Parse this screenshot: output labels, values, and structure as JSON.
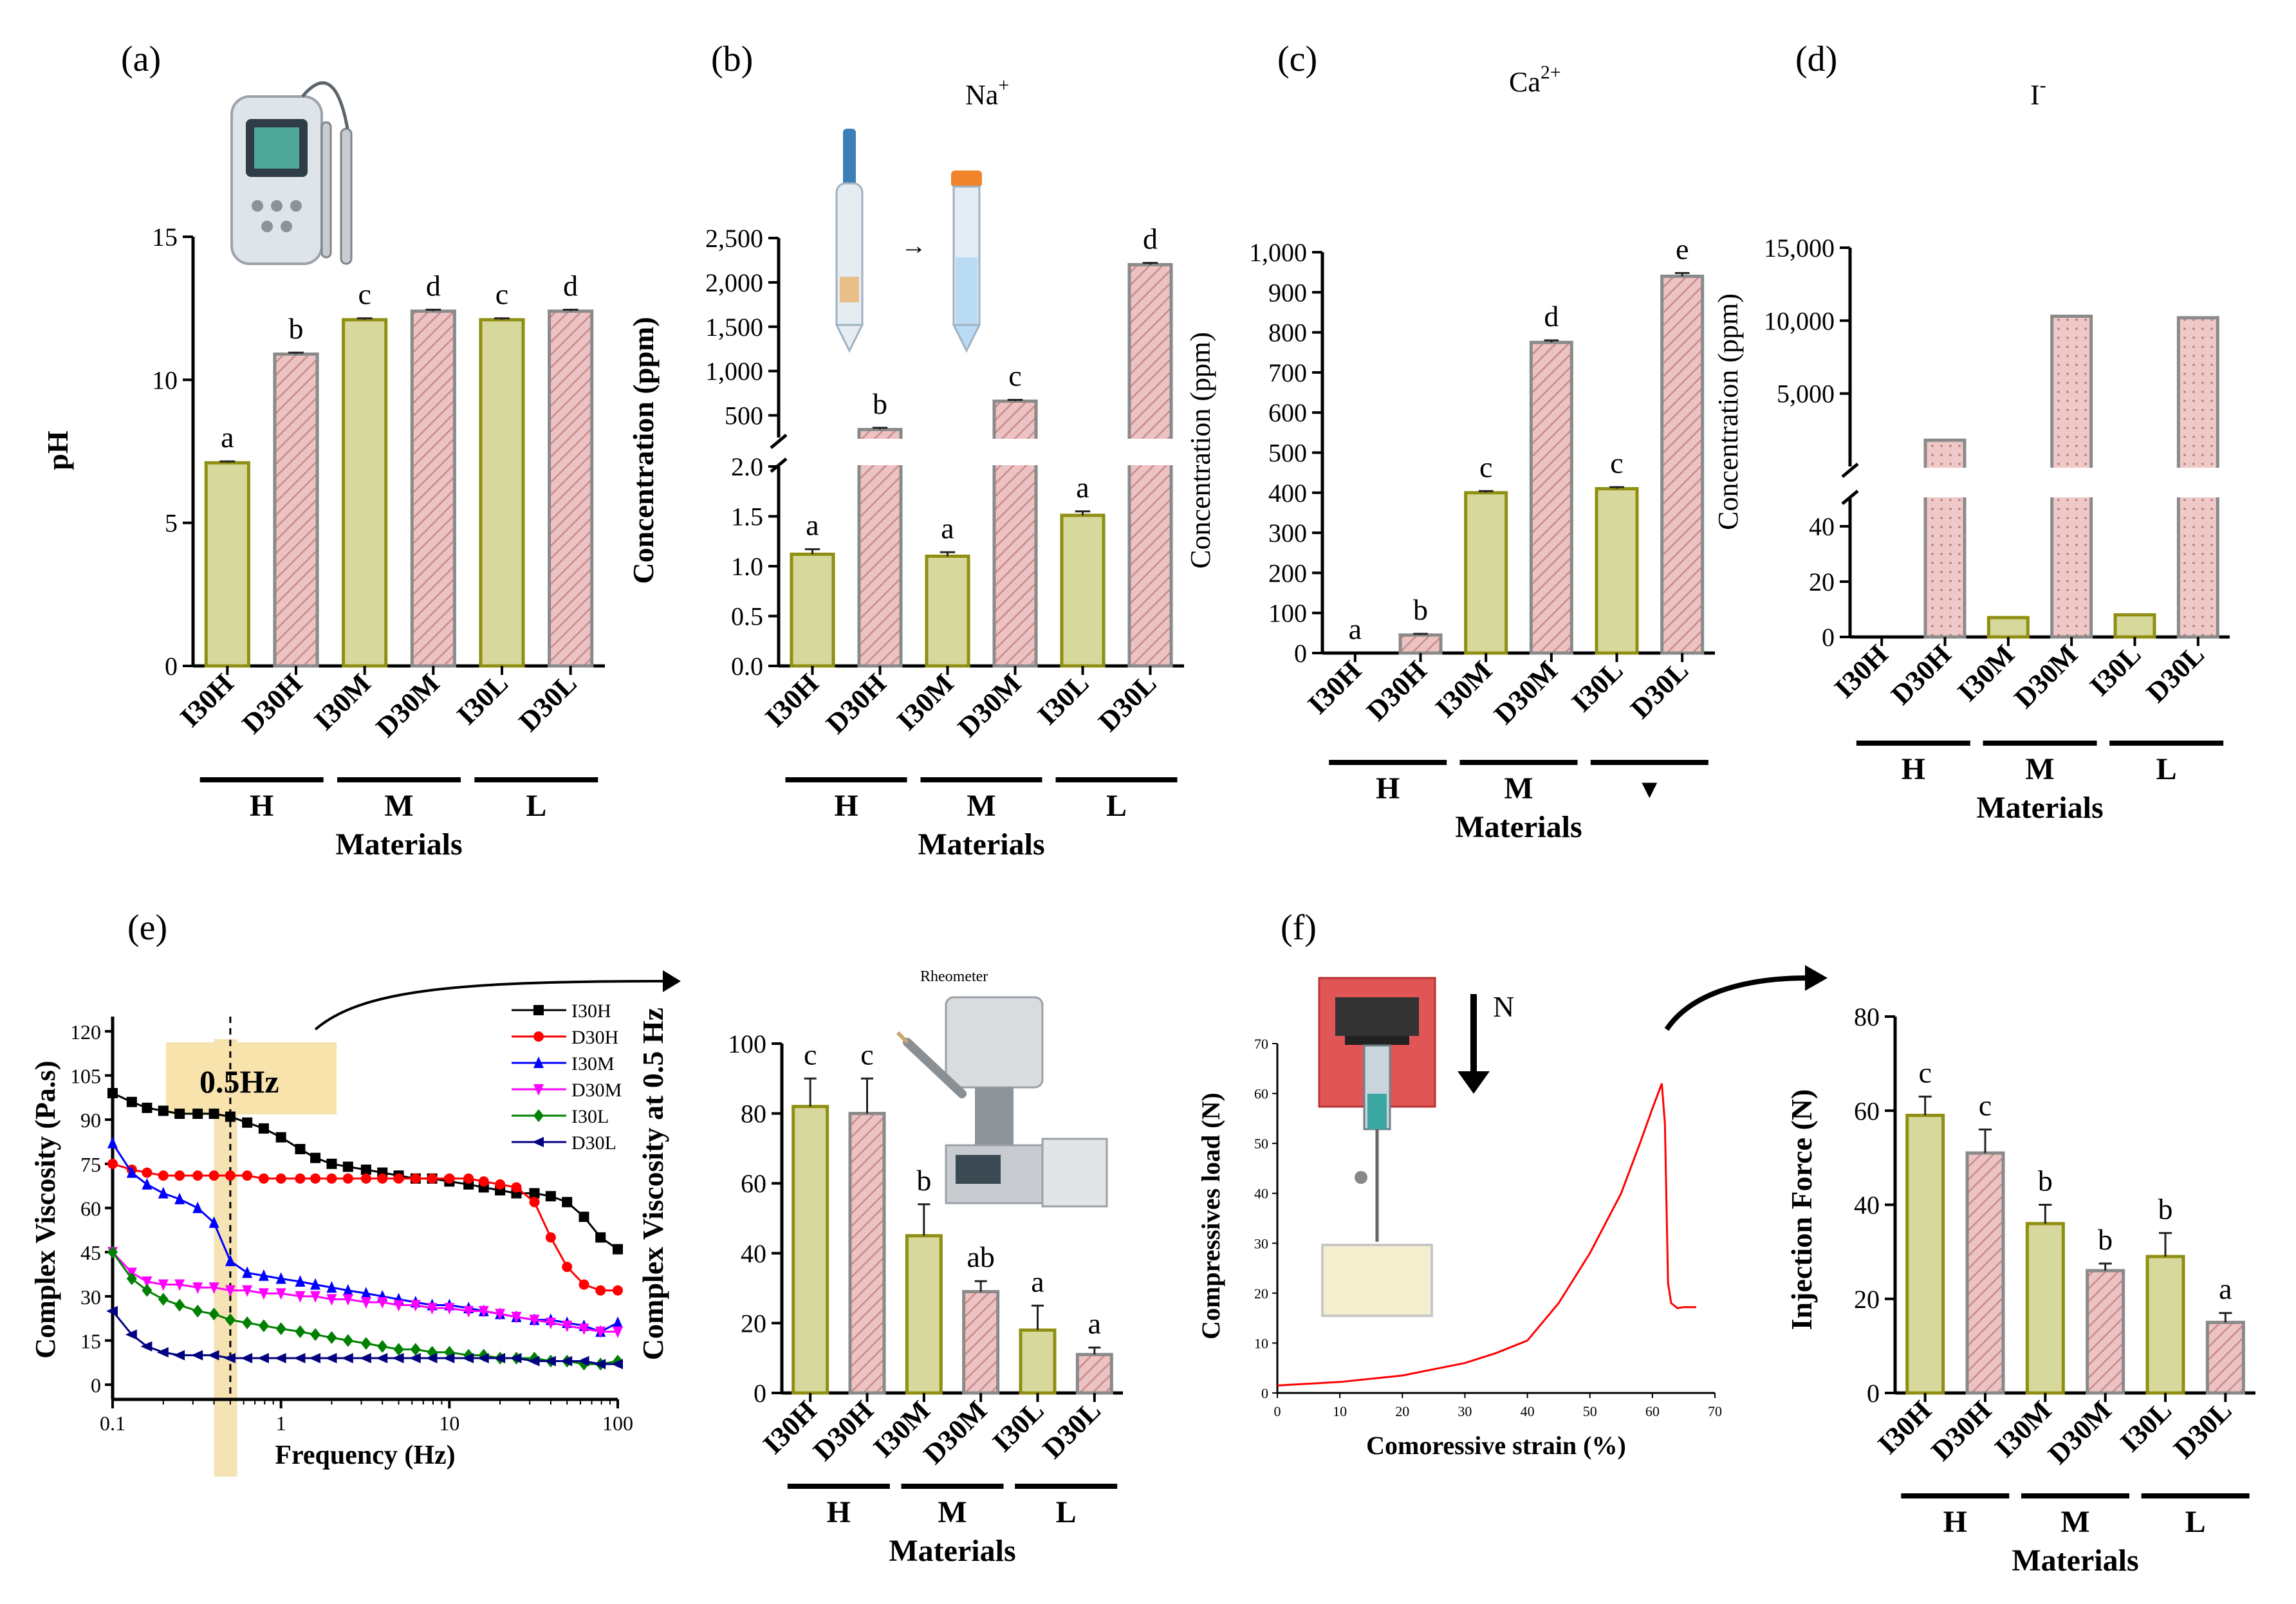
{
  "panel_labels": [
    "(a)",
    "(b)",
    "(c)",
    "(d)",
    "(e)",
    "(f)"
  ],
  "chart_data": [
    {
      "panel": "(a)",
      "type": "bar",
      "title": "",
      "ylabel": "pH",
      "xlabel": "Materials",
      "categories": [
        "I30H",
        "D30H",
        "I30M",
        "D30M",
        "I30L",
        "D30L"
      ],
      "groups": [
        "H",
        "M",
        "L"
      ],
      "values": [
        7.1,
        10.9,
        12.1,
        12.4,
        12.1,
        12.4
      ],
      "errors": [
        0.05,
        0.05,
        0.05,
        0.05,
        0.05,
        0.05
      ],
      "significance": [
        "a",
        "b",
        "c",
        "d",
        "c",
        "d"
      ],
      "ylim": [
        0,
        15
      ],
      "yticks": [
        "0",
        "5",
        "10",
        "15"
      ]
    },
    {
      "panel": "(b)",
      "type": "bar",
      "title": "Na",
      "title_sup": "+",
      "ylabel": "Concentration (ppm)",
      "xlabel": "Materials",
      "categories": [
        "I30H",
        "D30H",
        "I30M",
        "D30M",
        "I30L",
        "D30L"
      ],
      "groups": [
        "H",
        "M",
        "L"
      ],
      "values": [
        1.12,
        340,
        1.1,
        660,
        1.51,
        2200
      ],
      "errors": [
        0.05,
        20,
        0.04,
        15,
        0.04,
        20
      ],
      "significance": [
        "a",
        "b",
        "a",
        "c",
        "a",
        "d"
      ],
      "ylim_lower": [
        0,
        2.0
      ],
      "ylim_upper": [
        250,
        2500
      ],
      "yticks_lower": [
        "0.0",
        "0.5",
        "1.0",
        "1.5",
        "2.0"
      ],
      "yticks_upper": [
        "500",
        "1,000",
        "1,500",
        "2,000",
        "2,500"
      ]
    },
    {
      "panel": "(c)",
      "type": "bar",
      "title": "Ca",
      "title_sup": "2+",
      "ylabel": "Concentration (ppm)",
      "xlabel": "Materials",
      "categories": [
        "I30H",
        "D30H",
        "I30M",
        "D30M",
        "I30L",
        "D30L"
      ],
      "groups": [
        "H",
        "M",
        "▾"
      ],
      "values": [
        0,
        45,
        400,
        775,
        410,
        940
      ],
      "errors": [
        0,
        3,
        4,
        5,
        4,
        8
      ],
      "significance": [
        "a",
        "b",
        "c",
        "d",
        "c",
        "e"
      ],
      "ylim": [
        0,
        1000
      ],
      "yticks": [
        "0",
        "100",
        "200",
        "300",
        "400",
        "500",
        "600",
        "700",
        "800",
        "900",
        "1,000"
      ]
    },
    {
      "panel": "(d)",
      "type": "bar",
      "title": "I",
      "title_sup": "-",
      "ylabel": "Concentration (ppm)",
      "xlabel": "Materials",
      "categories": [
        "I30H",
        "D30H",
        "I30M",
        "D30M",
        "I30L",
        "D30L"
      ],
      "groups": [
        "H",
        "M",
        "L"
      ],
      "values": [
        0,
        1800,
        7,
        10300,
        8,
        10200
      ],
      "errors": [
        0,
        0,
        0,
        0,
        0,
        0
      ],
      "ylim_lower": [
        0,
        50
      ],
      "ylim_upper": [
        0,
        15000
      ],
      "yticks_lower": [
        "0",
        "20",
        "40"
      ],
      "yticks_upper": [
        "5,000",
        "10,000",
        "15,000"
      ]
    },
    {
      "panel": "(e)",
      "type": "line",
      "title": "",
      "xlabel": "Frequency (Hz)",
      "ylabel": "Complex Viscosity (Pa.s)",
      "xscale": "log",
      "xlim": [
        0.1,
        100
      ],
      "ylim": [
        -5,
        125
      ],
      "xticks": [
        "0.1",
        "1",
        "10",
        "100"
      ],
      "yticks": [
        "0",
        "15",
        "30",
        "45",
        "60",
        "75",
        "90",
        "105",
        "120"
      ],
      "annotation": "0.5Hz",
      "legend_position": "top-right",
      "x": [
        0.1,
        0.13,
        0.16,
        0.2,
        0.25,
        0.32,
        0.4,
        0.5,
        0.63,
        0.79,
        1,
        1.3,
        1.6,
        2,
        2.5,
        3.2,
        4,
        5,
        6.3,
        7.9,
        10,
        13,
        16,
        20,
        25,
        32,
        40,
        50,
        63,
        79,
        100
      ],
      "series": [
        {
          "name": "I30H",
          "color": "#000000",
          "marker": "square",
          "values": [
            99,
            96,
            94,
            93,
            92,
            92,
            92,
            91,
            89,
            87,
            84,
            80,
            77,
            75,
            74,
            73,
            72,
            71,
            70,
            70,
            69,
            68,
            67,
            66,
            65,
            65,
            64,
            62,
            57,
            50,
            46
          ]
        },
        {
          "name": "D30H",
          "color": "#ff0000",
          "marker": "circle",
          "values": [
            75,
            73,
            72,
            71,
            71,
            71,
            71,
            71,
            71,
            70,
            70,
            70,
            70,
            70,
            70,
            70,
            70,
            70,
            70,
            70,
            70,
            70,
            69,
            68,
            67,
            62,
            50,
            40,
            34,
            32,
            32
          ]
        },
        {
          "name": "I30M",
          "color": "#0000ff",
          "marker": "triangle-up",
          "values": [
            82,
            72,
            68,
            65,
            63,
            60,
            55,
            42,
            38,
            37,
            36,
            35,
            34,
            33,
            32,
            31,
            30,
            29,
            28,
            27,
            27,
            26,
            25,
            24,
            23,
            22,
            22,
            21,
            20,
            18,
            21
          ]
        },
        {
          "name": "D30M",
          "color": "#ff00ff",
          "marker": "triangle-down",
          "values": [
            45,
            38,
            35,
            34,
            34,
            33,
            33,
            32,
            32,
            31,
            31,
            30,
            30,
            29,
            29,
            28,
            28,
            27,
            27,
            26,
            26,
            25,
            25,
            24,
            23,
            22,
            21,
            20,
            19,
            18,
            18
          ]
        },
        {
          "name": "I30L",
          "color": "#008000",
          "marker": "diamond",
          "values": [
            45,
            36,
            32,
            29,
            27,
            25,
            24,
            22,
            21,
            20,
            19,
            18,
            17,
            16,
            15,
            14,
            13,
            12,
            12,
            11,
            11,
            10,
            10,
            9,
            9,
            9,
            8,
            8,
            7,
            7,
            8
          ]
        },
        {
          "name": "D30L",
          "color": "#000080",
          "marker": "triangle-left",
          "values": [
            25,
            17,
            13,
            11,
            10,
            10,
            10,
            9,
            9,
            9,
            9,
            9,
            9,
            9,
            9,
            9,
            9,
            9,
            9,
            9,
            9,
            9,
            9,
            9,
            9,
            8,
            8,
            8,
            8,
            7,
            7
          ]
        }
      ]
    },
    {
      "panel": "(e)-inset",
      "type": "bar",
      "ylabel": "Complex Viscosity at 0.5 Hz",
      "xlabel": "Materials",
      "image_label": "Rheometer",
      "categories": [
        "I30H",
        "D30H",
        "I30M",
        "D30M",
        "I30L",
        "D30L"
      ],
      "groups": [
        "H",
        "M",
        "L"
      ],
      "values": [
        82,
        80,
        45,
        29,
        18,
        11
      ],
      "errors": [
        8,
        10,
        9,
        3,
        7,
        2
      ],
      "significance": [
        "c",
        "c",
        "b",
        "ab",
        "a",
        "a"
      ],
      "ylim": [
        0,
        100
      ],
      "yticks": [
        "0",
        "20",
        "40",
        "60",
        "80",
        "100"
      ]
    },
    {
      "panel": "(f)",
      "type": "line",
      "xlabel": "Comoressive strain (%)",
      "ylabel": "Compressives load (N)",
      "annotation": "N",
      "xlim": [
        0,
        70
      ],
      "ylim": [
        0,
        70
      ],
      "xticks": [
        "0",
        "10",
        "20",
        "30",
        "40",
        "50",
        "60",
        "70"
      ],
      "yticks": [
        "0",
        "10",
        "20",
        "30",
        "40",
        "50",
        "60",
        "70"
      ],
      "x": [
        0,
        10,
        20,
        30,
        35,
        39,
        40,
        45,
        50,
        55,
        58,
        60,
        61.5,
        62,
        62.5,
        63,
        64,
        65,
        67
      ],
      "values": [
        1.5,
        2.2,
        3.5,
        6,
        8,
        10,
        10.5,
        18,
        28,
        40,
        50,
        57,
        62,
        54,
        22,
        18,
        17,
        17.2,
        17.2
      ],
      "color": "#ff0000"
    },
    {
      "panel": "(f)-inset",
      "type": "bar",
      "ylabel": "Injection Force (N)",
      "xlabel": "Materials",
      "categories": [
        "I30H",
        "D30H",
        "I30M",
        "D30M",
        "I30L",
        "D30L"
      ],
      "groups": [
        "H",
        "M",
        "L"
      ],
      "values": [
        59,
        51,
        36,
        26,
        29,
        15
      ],
      "errors": [
        4,
        5,
        4,
        1.5,
        5,
        2
      ],
      "significance": [
        "c",
        "c",
        "b",
        "b",
        "b",
        "a"
      ],
      "ylim": [
        0,
        80
      ],
      "yticks": [
        "0",
        "20",
        "40",
        "60",
        "80"
      ]
    }
  ]
}
